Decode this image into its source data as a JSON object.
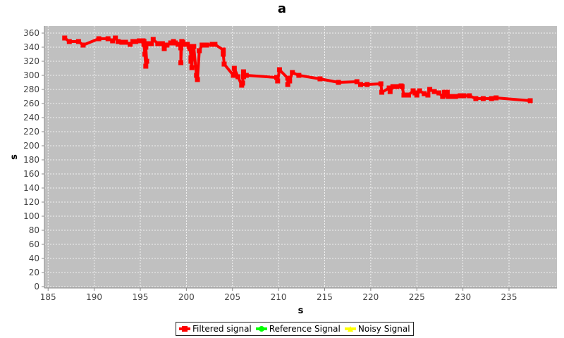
{
  "chart_data": {
    "type": "line",
    "title": "a",
    "xlabel": "s",
    "ylabel": "s",
    "xlim": [
      184.6,
      240.2
    ],
    "ylim": [
      -2,
      370
    ],
    "grid": true,
    "legend_position": "bottom-center",
    "x_ticks": [
      "185",
      "190",
      "195",
      "200",
      "205",
      "210",
      "215",
      "220",
      "225",
      "230",
      "235"
    ],
    "y_ticks": [
      "0",
      "20",
      "40",
      "60",
      "80",
      "100",
      "120",
      "140",
      "160",
      "180",
      "200",
      "220",
      "240",
      "260",
      "280",
      "300",
      "320",
      "340",
      "360"
    ],
    "plot_background": "#c0c0c0",
    "series": [
      {
        "name": "Filtered signal",
        "color": "#ff0000",
        "marker": "square",
        "x": [
          186.8,
          187.3,
          188.3,
          188.8,
          190.5,
          191.5,
          192.0,
          192.3,
          192.6,
          193.0,
          193.4,
          193.9,
          194.2,
          194.5,
          194.9,
          195.3,
          195.4,
          195.5,
          195.6,
          195.7,
          195.6,
          195.4,
          195.8,
          196.2,
          196.4,
          196.9,
          197.4,
          197.6,
          197.9,
          198.3,
          198.6,
          198.8,
          199.1,
          199.3,
          199.4,
          199.4,
          199.5,
          199.6,
          199.7,
          199.9,
          200.1,
          200.3,
          200.4,
          200.5,
          200.5,
          200.6,
          200.7,
          200.8,
          201.1,
          201.2,
          201.4,
          201.7,
          202.0,
          202.2,
          202.8,
          203.1,
          204.0,
          204.0,
          204.1,
          205.1,
          205.2,
          205.6,
          206.0,
          206.1,
          206.2,
          206.2,
          206.5,
          209.8,
          209.9,
          210.1,
          211.0,
          211.0,
          211.2,
          211.5,
          212.2,
          214.5,
          216.5,
          218.5,
          218.9,
          219.6,
          221.1,
          221.2,
          222.0,
          222.1,
          222.4,
          222.8,
          223.3,
          223.4,
          223.6,
          223.9,
          224.1,
          224.6,
          224.8,
          225.0,
          225.3,
          225.8,
          226.2,
          226.4,
          226.9,
          227.4,
          227.8,
          228.0,
          228.1,
          228.3,
          228.4,
          228.7,
          229.2,
          229.7,
          230.1,
          230.7,
          231.4,
          232.2,
          233.1,
          233.6,
          237.3
        ],
        "y": [
          353,
          348,
          348,
          343,
          352,
          352,
          349,
          353,
          348,
          347,
          347,
          344,
          348,
          348,
          349,
          349,
          344,
          330,
          313,
          320,
          340,
          348,
          345,
          345,
          351,
          345,
          345,
          338,
          343,
          346,
          348,
          346,
          344,
          344,
          339,
          318,
          348,
          347,
          344,
          344,
          344,
          341,
          338,
          325,
          320,
          311,
          341,
          341,
          300,
          294,
          335,
          343,
          343,
          343,
          344,
          344,
          336,
          330,
          316,
          300,
          310,
          298,
          286,
          289,
          305,
          298,
          300,
          297,
          292,
          308,
          296,
          287,
          292,
          304,
          300,
          295,
          290,
          291,
          287,
          287,
          288,
          276,
          282,
          277,
          284,
          284,
          285,
          284,
          272,
          272,
          272,
          278,
          275,
          272,
          278,
          274,
          272,
          280,
          277,
          275,
          270,
          276,
          272,
          276,
          270,
          270,
          270,
          271,
          271,
          271,
          267,
          267,
          267,
          268,
          264
        ]
      },
      {
        "name": "Reference Signal",
        "color": "#00ff00",
        "marker": "circle",
        "x": [],
        "y": []
      },
      {
        "name": "Noisy Signal",
        "color": "#ffff00",
        "marker": "triangle",
        "x": [],
        "y": []
      }
    ]
  }
}
